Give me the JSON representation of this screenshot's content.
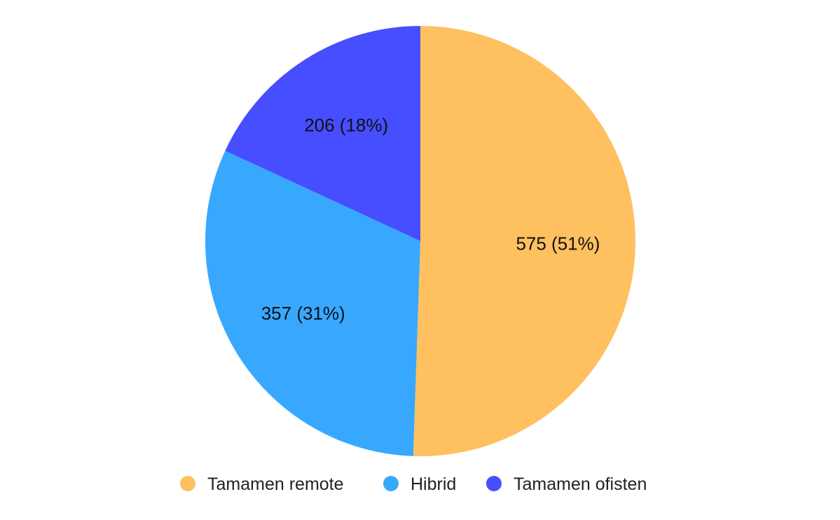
{
  "chart_data": {
    "type": "pie",
    "categories": [
      "Tamamen remote",
      "Hibrid",
      "Tamamen ofisten"
    ],
    "values": [
      575,
      357,
      206
    ],
    "percent_labels": [
      "51%",
      "31%",
      "18%"
    ],
    "data_labels": [
      "575 (51%)",
      "357 (31%)",
      "206 (18%)"
    ],
    "colors": [
      "#FFC060",
      "#38A8FF",
      "#464EFF"
    ],
    "start_angle": "top",
    "direction": "clockwise",
    "legend_position": "bottom"
  }
}
